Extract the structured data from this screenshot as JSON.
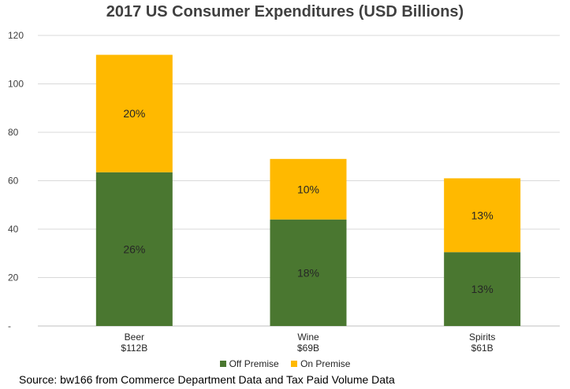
{
  "colors": {
    "off_premise": "#4a7730",
    "on_premise": "#ffb900",
    "grid": "#d9d9d9",
    "axis": "#bfbfbf"
  },
  "chart_data": {
    "type": "bar",
    "stacked": true,
    "title": "2017 US Consumer Expenditures (USD Billions)",
    "categories": [
      "Beer",
      "Wine",
      "Spirits"
    ],
    "category_sublabels": [
      "$112B",
      "$69B",
      "$61B"
    ],
    "yticks": [
      "-",
      "20",
      "40",
      "60",
      "80",
      "100",
      "120"
    ],
    "ylim": [
      0,
      120
    ],
    "grid": true,
    "legend_position": "bottom",
    "series": [
      {
        "name": "Off Premise",
        "values": [
          63.5,
          44,
          30.5
        ],
        "labels": [
          "26%",
          "18%",
          "13%"
        ]
      },
      {
        "name": "On Premise",
        "values": [
          48.5,
          25,
          30.5
        ],
        "labels": [
          "20%",
          "10%",
          "13%"
        ]
      }
    ]
  },
  "source": "Source: bw166 from Commerce Department Data and Tax Paid Volume Data"
}
